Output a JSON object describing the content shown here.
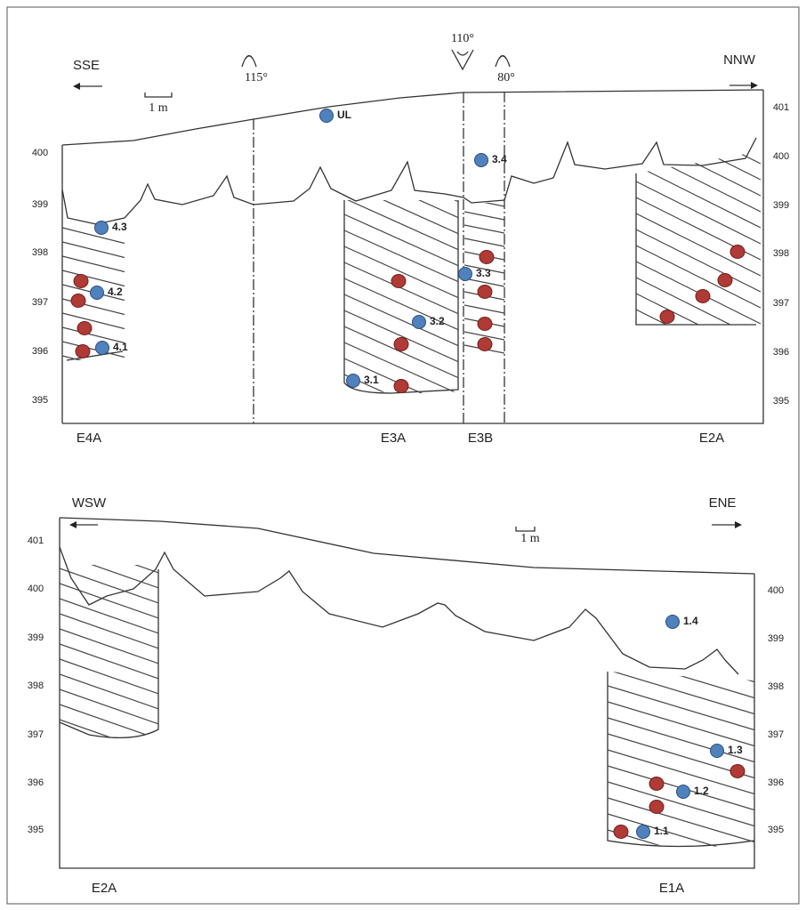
{
  "panels": [
    {
      "direction_left": "SSE",
      "direction_right": "NNW",
      "scale": "1 m",
      "view_angles": [
        "115°",
        "110°",
        "80°"
      ],
      "left_axis": [
        400,
        399,
        398,
        397,
        396,
        395
      ],
      "right_axis": [
        401,
        400,
        399,
        398,
        397,
        396,
        395
      ],
      "samples": [
        "UL",
        "3.4",
        "4.3",
        "4.2",
        "4.1",
        "3.3",
        "3.2",
        "3.1"
      ],
      "trenches": [
        "E4A",
        "E3A",
        "E3B",
        "E2A"
      ]
    },
    {
      "direction_left": "WSW",
      "direction_right": "ENE",
      "scale": "1 m",
      "left_axis": [
        401,
        400,
        399,
        398,
        397,
        396,
        395
      ],
      "right_axis": [
        400,
        399,
        398,
        397,
        396,
        395
      ],
      "samples": [
        "1.4",
        "1.3",
        "1.2",
        "1.1"
      ],
      "trenches": [
        "E2A",
        "E1A"
      ]
    }
  ]
}
